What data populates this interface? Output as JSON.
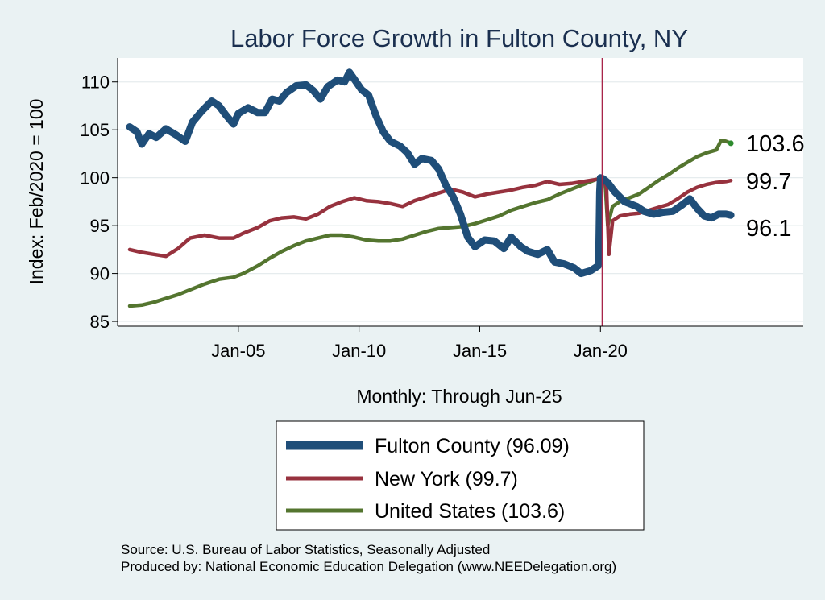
{
  "chart_data": {
    "type": "line",
    "title": "Labor Force Growth in Fulton  County, NY",
    "ylabel": "Index: Feb/2020 = 100",
    "xlabel": "Monthly: Through Jun-25",
    "ylim": [
      84.5,
      112.5
    ],
    "xlim": [
      2000.0,
      2028.4
    ],
    "y_ticks": [
      85,
      90,
      95,
      100,
      105,
      110
    ],
    "x_ticks": [
      {
        "x": 2005.0,
        "label": "Jan-05"
      },
      {
        "x": 2010.0,
        "label": "Jan-10"
      },
      {
        "x": 2015.0,
        "label": "Jan-15"
      },
      {
        "x": 2020.0,
        "label": "Jan-20"
      }
    ],
    "reference_line": {
      "x": 2020.08,
      "color": "#A8254A"
    },
    "grid": true,
    "series": [
      {
        "name": "Fulton  County",
        "legend": "Fulton  County (96.09)",
        "color": "#1F4E79",
        "end_label": "96.1",
        "points": [
          [
            2000.5,
            105.3
          ],
          [
            2000.8,
            104.8
          ],
          [
            2001.0,
            103.5
          ],
          [
            2001.3,
            104.6
          ],
          [
            2001.6,
            104.2
          ],
          [
            2002.0,
            105.1
          ],
          [
            2002.4,
            104.5
          ],
          [
            2002.8,
            103.8
          ],
          [
            2003.1,
            105.8
          ],
          [
            2003.5,
            107.0
          ],
          [
            2003.9,
            108.0
          ],
          [
            2004.2,
            107.5
          ],
          [
            2004.5,
            106.5
          ],
          [
            2004.8,
            105.6
          ],
          [
            2005.0,
            106.7
          ],
          [
            2005.4,
            107.3
          ],
          [
            2005.8,
            106.8
          ],
          [
            2006.1,
            106.8
          ],
          [
            2006.4,
            108.2
          ],
          [
            2006.7,
            108.0
          ],
          [
            2007.0,
            108.9
          ],
          [
            2007.4,
            109.6
          ],
          [
            2007.8,
            109.7
          ],
          [
            2008.1,
            109.1
          ],
          [
            2008.4,
            108.2
          ],
          [
            2008.7,
            109.5
          ],
          [
            2009.1,
            110.2
          ],
          [
            2009.4,
            110.0
          ],
          [
            2009.6,
            111.0
          ],
          [
            2009.8,
            110.3
          ],
          [
            2010.1,
            109.2
          ],
          [
            2010.4,
            108.6
          ],
          [
            2010.7,
            106.5
          ],
          [
            2011.0,
            104.8
          ],
          [
            2011.3,
            103.8
          ],
          [
            2011.7,
            103.3
          ],
          [
            2012.0,
            102.6
          ],
          [
            2012.3,
            101.4
          ],
          [
            2012.6,
            102.0
          ],
          [
            2013.0,
            101.8
          ],
          [
            2013.3,
            100.9
          ],
          [
            2013.6,
            99.2
          ],
          [
            2013.9,
            98.0
          ],
          [
            2014.2,
            96.2
          ],
          [
            2014.5,
            93.8
          ],
          [
            2014.8,
            92.8
          ],
          [
            2015.2,
            93.5
          ],
          [
            2015.6,
            93.4
          ],
          [
            2016.0,
            92.6
          ],
          [
            2016.3,
            93.8
          ],
          [
            2016.7,
            92.8
          ],
          [
            2017.0,
            92.3
          ],
          [
            2017.4,
            92.0
          ],
          [
            2017.8,
            92.5
          ],
          [
            2018.1,
            91.2
          ],
          [
            2018.5,
            91.0
          ],
          [
            2018.9,
            90.6
          ],
          [
            2019.2,
            90.0
          ],
          [
            2019.6,
            90.3
          ],
          [
            2019.9,
            90.8
          ],
          [
            2019.93,
            91.5
          ],
          [
            2019.97,
            98.5
          ],
          [
            2020.0,
            100.0
          ],
          [
            2020.1,
            99.9
          ],
          [
            2020.3,
            99.5
          ],
          [
            2020.6,
            98.5
          ],
          [
            2021.0,
            97.5
          ],
          [
            2021.5,
            97.0
          ],
          [
            2021.8,
            96.5
          ],
          [
            2022.2,
            96.2
          ],
          [
            2022.6,
            96.4
          ],
          [
            2023.0,
            96.5
          ],
          [
            2023.4,
            97.2
          ],
          [
            2023.7,
            97.8
          ],
          [
            2024.0,
            96.8
          ],
          [
            2024.3,
            96.0
          ],
          [
            2024.6,
            95.8
          ],
          [
            2024.9,
            96.2
          ],
          [
            2025.2,
            96.2
          ],
          [
            2025.4,
            96.09
          ]
        ]
      },
      {
        "name": "New York",
        "legend": "New York (99.7)",
        "color": "#97323E",
        "end_label": "99.7",
        "points": [
          [
            2000.5,
            92.5
          ],
          [
            2001.0,
            92.2
          ],
          [
            2001.5,
            92.0
          ],
          [
            2002.0,
            91.8
          ],
          [
            2002.5,
            92.6
          ],
          [
            2003.0,
            93.7
          ],
          [
            2003.6,
            94.0
          ],
          [
            2004.2,
            93.7
          ],
          [
            2004.8,
            93.7
          ],
          [
            2005.2,
            94.2
          ],
          [
            2005.8,
            94.8
          ],
          [
            2006.3,
            95.5
          ],
          [
            2006.8,
            95.8
          ],
          [
            2007.3,
            95.9
          ],
          [
            2007.8,
            95.7
          ],
          [
            2008.3,
            96.2
          ],
          [
            2008.8,
            97.0
          ],
          [
            2009.3,
            97.5
          ],
          [
            2009.8,
            97.9
          ],
          [
            2010.3,
            97.6
          ],
          [
            2010.8,
            97.5
          ],
          [
            2011.3,
            97.3
          ],
          [
            2011.8,
            97.0
          ],
          [
            2012.3,
            97.6
          ],
          [
            2012.8,
            98.0
          ],
          [
            2013.3,
            98.4
          ],
          [
            2013.8,
            98.8
          ],
          [
            2014.3,
            98.5
          ],
          [
            2014.8,
            98.0
          ],
          [
            2015.3,
            98.3
          ],
          [
            2015.8,
            98.5
          ],
          [
            2016.3,
            98.7
          ],
          [
            2016.8,
            99.0
          ],
          [
            2017.3,
            99.2
          ],
          [
            2017.8,
            99.6
          ],
          [
            2018.3,
            99.3
          ],
          [
            2018.8,
            99.4
          ],
          [
            2019.3,
            99.6
          ],
          [
            2019.8,
            99.8
          ],
          [
            2020.1,
            100.0
          ],
          [
            2020.25,
            99.0
          ],
          [
            2020.35,
            92.0
          ],
          [
            2020.5,
            95.5
          ],
          [
            2020.8,
            96.0
          ],
          [
            2021.2,
            96.2
          ],
          [
            2021.6,
            96.3
          ],
          [
            2022.0,
            96.6
          ],
          [
            2022.4,
            96.9
          ],
          [
            2022.8,
            97.2
          ],
          [
            2023.2,
            97.8
          ],
          [
            2023.6,
            98.5
          ],
          [
            2024.0,
            99.0
          ],
          [
            2024.4,
            99.3
          ],
          [
            2024.8,
            99.5
          ],
          [
            2025.2,
            99.6
          ],
          [
            2025.4,
            99.7
          ]
        ]
      },
      {
        "name": "United States",
        "legend": "United States (103.6)",
        "color": "#54752F",
        "end_label": "103.6",
        "points": [
          [
            2000.5,
            86.6
          ],
          [
            2001.0,
            86.7
          ],
          [
            2001.5,
            87.0
          ],
          [
            2002.0,
            87.4
          ],
          [
            2002.5,
            87.8
          ],
          [
            2003.0,
            88.3
          ],
          [
            2003.6,
            88.9
          ],
          [
            2004.2,
            89.4
          ],
          [
            2004.8,
            89.6
          ],
          [
            2005.2,
            90.0
          ],
          [
            2005.8,
            90.8
          ],
          [
            2006.3,
            91.6
          ],
          [
            2006.8,
            92.3
          ],
          [
            2007.3,
            92.9
          ],
          [
            2007.8,
            93.4
          ],
          [
            2008.3,
            93.7
          ],
          [
            2008.8,
            94.0
          ],
          [
            2009.3,
            94.0
          ],
          [
            2009.8,
            93.8
          ],
          [
            2010.3,
            93.5
          ],
          [
            2010.8,
            93.4
          ],
          [
            2011.3,
            93.4
          ],
          [
            2011.8,
            93.6
          ],
          [
            2012.3,
            94.0
          ],
          [
            2012.8,
            94.4
          ],
          [
            2013.3,
            94.7
          ],
          [
            2013.8,
            94.8
          ],
          [
            2014.3,
            94.9
          ],
          [
            2014.8,
            95.2
          ],
          [
            2015.3,
            95.6
          ],
          [
            2015.8,
            96.0
          ],
          [
            2016.3,
            96.6
          ],
          [
            2016.8,
            97.0
          ],
          [
            2017.3,
            97.4
          ],
          [
            2017.8,
            97.7
          ],
          [
            2018.3,
            98.3
          ],
          [
            2018.8,
            98.8
          ],
          [
            2019.3,
            99.3
          ],
          [
            2019.8,
            99.8
          ],
          [
            2020.1,
            100.0
          ],
          [
            2020.2,
            99.3
          ],
          [
            2020.3,
            95.0
          ],
          [
            2020.5,
            97.0
          ],
          [
            2020.8,
            97.5
          ],
          [
            2021.2,
            97.9
          ],
          [
            2021.6,
            98.3
          ],
          [
            2022.0,
            99.0
          ],
          [
            2022.4,
            99.7
          ],
          [
            2022.8,
            100.3
          ],
          [
            2023.2,
            101.0
          ],
          [
            2023.6,
            101.6
          ],
          [
            2024.0,
            102.2
          ],
          [
            2024.4,
            102.6
          ],
          [
            2024.8,
            102.9
          ],
          [
            2025.0,
            103.9
          ],
          [
            2025.2,
            103.8
          ],
          [
            2025.4,
            103.6
          ]
        ]
      }
    ]
  },
  "notes": {
    "source": "Source: U.S. Bureau of Labor Statistics, Seasonally Adjusted",
    "produced_by": "Produced by: National Economic Education Delegation (www.NEEDelegation.org)"
  }
}
